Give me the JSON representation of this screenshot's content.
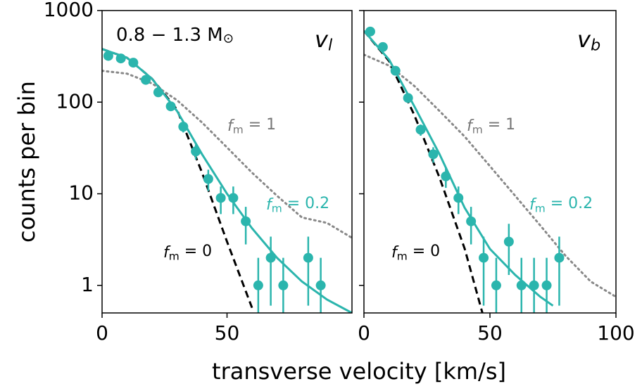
{
  "chart_data": [
    {
      "type": "line",
      "ylabel": "counts per bin",
      "xlabel": "transverse velocity [km/s]",
      "xlim": [
        0,
        100
      ],
      "xticks": [
        0,
        50
      ],
      "ylim": [
        0.5,
        1000
      ],
      "yticks": [
        1,
        10,
        100,
        1000
      ],
      "log_y": true,
      "annotations": [
        {
          "text": "0.8 − 1.3 M",
          "sub": "⊙",
          "color": "#000000"
        },
        {
          "text": "v",
          "sub": "l",
          "color": "#000000"
        },
        {
          "text": "f",
          "sub": "m",
          "rest": " = 1",
          "color": "#777777"
        },
        {
          "text": "f",
          "sub": "m",
          "rest": " = 0.2",
          "color": "#2bb5ad"
        },
        {
          "text": "f",
          "sub": "m",
          "rest": " = 0",
          "color": "#000000"
        }
      ],
      "series": [
        {
          "style": "dotted",
          "color": "#888888",
          "x": [
            0,
            10,
            20,
            30,
            40,
            50,
            60,
            70,
            80,
            90,
            100
          ],
          "values": [
            220,
            205,
            160,
            105,
            60,
            32,
            17,
            9.5,
            5.5,
            4.8,
            3.3
          ]
        },
        {
          "style": "dashed",
          "color": "#000000",
          "x": [
            0,
            10,
            20,
            30,
            40,
            50,
            60
          ],
          "values": [
            380,
            305,
            180,
            83,
            17,
            3,
            0.57
          ]
        },
        {
          "style": "solid",
          "color": "#2bb5ad",
          "x": [
            0,
            10,
            20,
            30,
            40,
            50,
            60,
            70,
            80,
            90,
            100
          ],
          "values": [
            380,
            305,
            180,
            80,
            27,
            10,
            4.2,
            2,
            1.1,
            0.7,
            0.5
          ]
        },
        {
          "style": "points",
          "color": "#2bb5ad",
          "x": [
            2.5,
            7.5,
            12.5,
            17.5,
            22.5,
            27.5,
            32.5,
            37.5,
            42.5,
            47.5,
            52.5,
            57.5,
            62.5,
            67.5,
            72.5,
            82.5,
            87.5
          ],
          "values": [
            320,
            300,
            270,
            175,
            128,
            90,
            54,
            29,
            14.5,
            9,
            9,
            5,
            1,
            2,
            1,
            2,
            1
          ],
          "errors": [
            18,
            17,
            16,
            13,
            11,
            9.5,
            7.3,
            5.4,
            3.8,
            3,
            3,
            2.2,
            1,
            1.4,
            1,
            1.4,
            1
          ]
        }
      ]
    },
    {
      "type": "line",
      "xlim": [
        0,
        100
      ],
      "xticks": [
        0,
        50,
        100
      ],
      "ylim": [
        0.5,
        1000
      ],
      "yticks": [
        1,
        10,
        100,
        1000
      ],
      "log_y": true,
      "annotations": [
        {
          "text": "v",
          "sub": "b",
          "color": "#000000"
        },
        {
          "text": "f",
          "sub": "m",
          "rest": " = 1",
          "color": "#777777"
        },
        {
          "text": "f",
          "sub": "m",
          "rest": " = 0.2",
          "color": "#2bb5ad"
        },
        {
          "text": "f",
          "sub": "m",
          "rest": " = 0",
          "color": "#000000"
        }
      ],
      "series": [
        {
          "style": "dotted",
          "color": "#888888",
          "x": [
            0,
            10,
            20,
            30,
            40,
            50,
            60,
            70,
            80,
            90,
            100
          ],
          "values": [
            330,
            250,
            150,
            80,
            42,
            20,
            9.5,
            4.5,
            2.1,
            1.1,
            0.75
          ]
        },
        {
          "style": "dashed",
          "color": "#000000",
          "x": [
            0,
            10,
            20,
            30,
            40,
            47
          ],
          "values": [
            600,
            280,
            72,
            15,
            2.5,
            0.5
          ]
        },
        {
          "style": "solid",
          "color": "#2bb5ad",
          "x": [
            0,
            10,
            20,
            30,
            40,
            50,
            60,
            70,
            75
          ],
          "values": [
            600,
            290,
            90,
            27,
            7,
            2.5,
            1.3,
            0.75,
            0.6
          ]
        },
        {
          "style": "points",
          "color": "#2bb5ad",
          "x": [
            2.5,
            7.5,
            12.5,
            17.5,
            22.5,
            27.5,
            32.5,
            37.5,
            42.5,
            47.5,
            52.5,
            57.5,
            62.5,
            67.5,
            72.5,
            77.5
          ],
          "values": [
            590,
            400,
            220,
            111,
            50,
            27,
            15.5,
            9,
            5,
            2,
            1,
            3,
            1,
            1,
            1,
            2
          ],
          "errors": [
            24,
            20,
            15,
            10.5,
            7,
            5.2,
            3.9,
            3,
            2.2,
            1.4,
            1,
            1.7,
            1,
            1,
            1,
            1.4
          ]
        }
      ]
    }
  ]
}
